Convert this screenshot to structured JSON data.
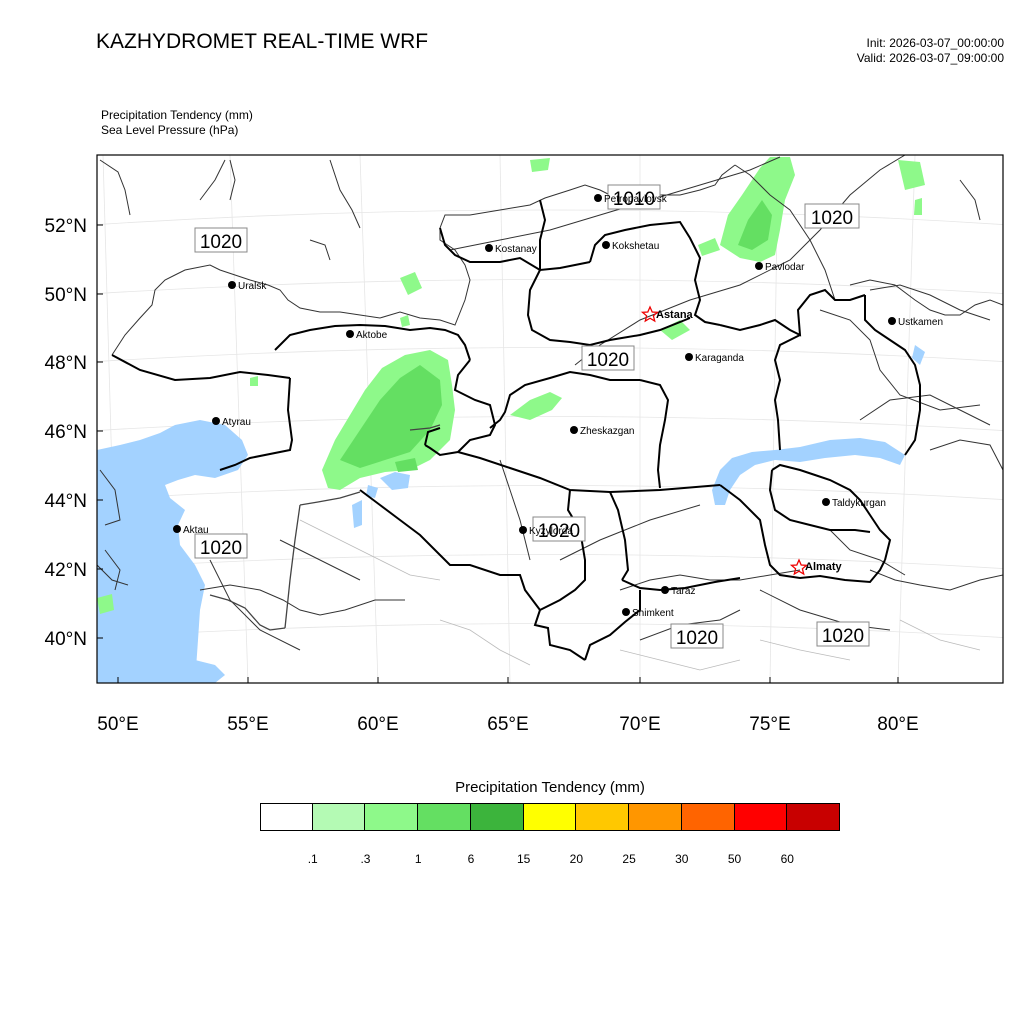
{
  "header": {
    "title": "KAZHYDROMET REAL-TIME WRF",
    "init": "Init: 2026-03-07_00:00:00",
    "valid": "Valid: 2026-03-07_09:00:00"
  },
  "fields": {
    "field1": "Precipitation Tendency   (mm)",
    "field2": "Sea Level Pressure   (hPa)"
  },
  "axes": {
    "lat_labels": [
      "52°N",
      "50°N",
      "48°N",
      "46°N",
      "44°N",
      "42°N",
      "40°N"
    ],
    "lon_labels": [
      "50°E",
      "55°E",
      "60°E",
      "65°E",
      "70°E",
      "75°E",
      "80°E"
    ]
  },
  "cities": [
    {
      "name": "Petropavlovsk"
    },
    {
      "name": "Kostanay"
    },
    {
      "name": "Kokshetau"
    },
    {
      "name": "Pavlodar"
    },
    {
      "name": "Uralsk"
    },
    {
      "name": "Aktobe"
    },
    {
      "name": "Astana",
      "capital": true
    },
    {
      "name": "Ustkamen"
    },
    {
      "name": "Karaganda"
    },
    {
      "name": "Atyrau"
    },
    {
      "name": "Zheskazgan"
    },
    {
      "name": "Taldykurgan"
    },
    {
      "name": "Aktau"
    },
    {
      "name": "Kyzylorda"
    },
    {
      "name": "Almaty",
      "capital": true
    },
    {
      "name": "Taraz"
    },
    {
      "name": "Shimkent"
    }
  ],
  "isobar_labels": [
    "1020",
    "1010",
    "1020",
    "1020",
    "1020",
    "1020",
    "1020",
    "1020"
  ],
  "colorbar": {
    "title": "Precipitation Tendency (mm)",
    "ticks": [
      ".1",
      ".3",
      "1",
      "6",
      "15",
      "20",
      "25",
      "30",
      "50",
      "60"
    ],
    "colors": [
      "#ffffff",
      "#b4fab4",
      "#8ef98a",
      "#64df62",
      "#3cb43c",
      "#ffff00",
      "#ffc800",
      "#ff9600",
      "#ff6400",
      "#ff0000",
      "#c80000"
    ]
  },
  "colors": {
    "water": "#a3d2ff",
    "light_precip": "#8ef98a",
    "medium_precip": "#64df62"
  }
}
